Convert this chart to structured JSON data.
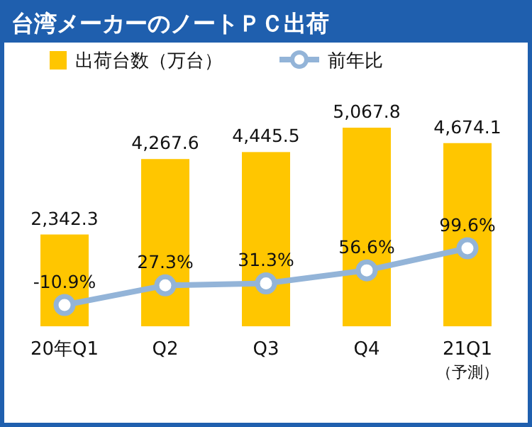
{
  "chart_data": {
    "type": "bar",
    "title": "台湾メーカーのノートＰＣ出荷",
    "categories": [
      "20年Q1",
      "Q2",
      "Q3",
      "Q4",
      "21Q1（予測）"
    ],
    "series": [
      {
        "name": "出荷台数（万台）",
        "color": "#ffc600",
        "values": [
          2342.3,
          4267.6,
          4445.5,
          5067.8,
          4674.1
        ],
        "value_labels": [
          "2,342.3",
          "4,267.6",
          "4,445.5",
          "5,067.8",
          "4,674.1"
        ]
      },
      {
        "name": "前年比",
        "type": "line",
        "axis": "y2",
        "color": "#93b4d8",
        "values": [
          -10.9,
          27.3,
          31.3,
          56.6,
          99.6
        ],
        "value_labels": [
          "-10.9%",
          "27.3%",
          "31.3%",
          "56.6%",
          "99.6%"
        ]
      }
    ],
    "legend": "top",
    "marker": "circle"
  }
}
